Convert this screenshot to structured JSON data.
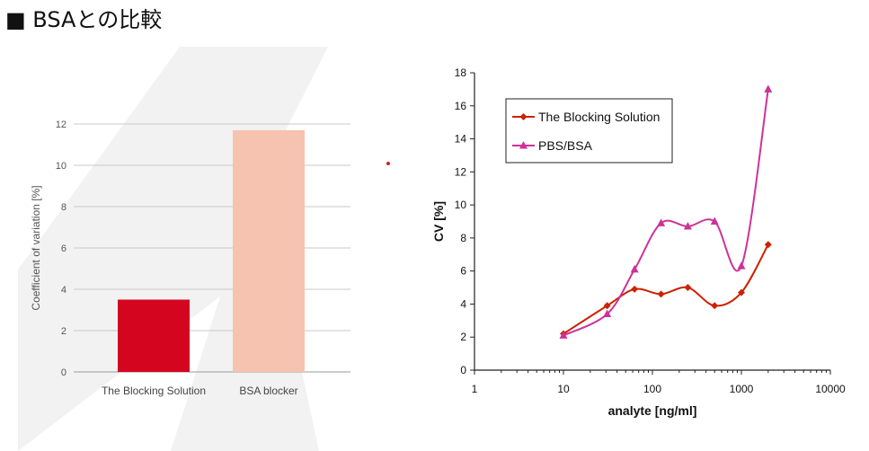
{
  "page": {
    "heading": "■ BSAとの比較"
  },
  "colors": {
    "dot": "#d0222a"
  },
  "chart_data": [
    {
      "type": "bar",
      "categories": [
        "The Blocking Solution",
        "BSA blocker"
      ],
      "values": [
        3.5,
        11.7
      ],
      "colors": [
        "#d4061f",
        "#f5c3b0"
      ],
      "ylabel": "Coefficient of variation [%]",
      "ylim": [
        0,
        12
      ],
      "yticks": [
        0,
        2,
        4,
        6,
        8,
        10,
        12
      ],
      "grid": true
    },
    {
      "type": "line",
      "xscale": "log",
      "xlabel": "analyte [ng/ml]",
      "ylabel": "CV [%]",
      "xlim": [
        1,
        10000
      ],
      "ylim": [
        0,
        18
      ],
      "xticks": [
        1,
        10,
        100,
        1000,
        10000
      ],
      "yticks": [
        0,
        2,
        4,
        6,
        8,
        10,
        12,
        14,
        16,
        18
      ],
      "legend_position": "top-left",
      "series": [
        {
          "name": "The Blocking Solution",
          "color": "#cc2200",
          "marker": "diamond",
          "x": [
            10,
            31,
            63,
            125,
            250,
            500,
            1000,
            2000
          ],
          "values": [
            2.2,
            3.9,
            4.9,
            4.6,
            5.0,
            3.9,
            4.7,
            7.6
          ]
        },
        {
          "name": "PBS/BSA",
          "color": "#cc3399",
          "marker": "triangle",
          "x": [
            10,
            31,
            63,
            125,
            250,
            500,
            1000,
            2000
          ],
          "values": [
            2.1,
            3.4,
            6.1,
            8.9,
            8.7,
            9.0,
            6.3,
            17.0
          ]
        }
      ]
    }
  ]
}
